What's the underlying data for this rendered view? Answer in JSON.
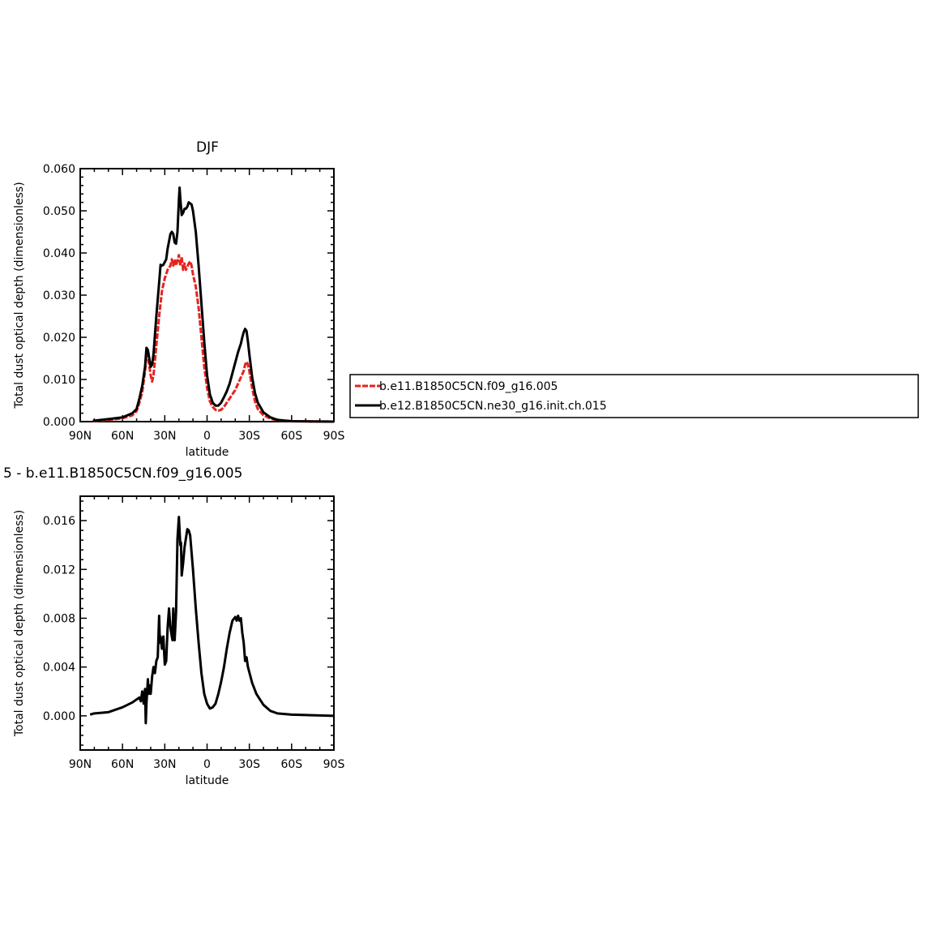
{
  "chart_data": [
    {
      "type": "line",
      "title": "DJF",
      "xlabel": "latitude",
      "ylabel": "Total dust optical depth (dimensionless)",
      "xlim": [
        90,
        -90
      ],
      "ylim": [
        0,
        0.06
      ],
      "x_ticks": [
        {
          "value": 90,
          "label": "90N"
        },
        {
          "value": 60,
          "label": "60N"
        },
        {
          "value": 30,
          "label": "30N"
        },
        {
          "value": 0,
          "label": "0"
        },
        {
          "value": -30,
          "label": "30S"
        },
        {
          "value": -60,
          "label": "60S"
        },
        {
          "value": -90,
          "label": "90S"
        }
      ],
      "y_ticks": [
        {
          "value": 0,
          "label": "0.000"
        },
        {
          "value": 0.01,
          "label": "0.010"
        },
        {
          "value": 0.02,
          "label": "0.020"
        },
        {
          "value": 0.03,
          "label": "0.030"
        },
        {
          "value": 0.04,
          "label": "0.040"
        },
        {
          "value": 0.05,
          "label": "0.050"
        },
        {
          "value": 0.06,
          "label": "0.060"
        }
      ],
      "legend_position": "right",
      "series": [
        {
          "name": "b.e11.B1850C5CN.f09_g16.005",
          "color": "#e8221f",
          "dashed": true,
          "points": [
            [
              81,
              0.0001
            ],
            [
              70,
              0.0004
            ],
            [
              60,
              0.0008
            ],
            [
              53,
              0.0015
            ],
            [
              50,
              0.0025
            ],
            [
              48,
              0.0045
            ],
            [
              46,
              0.007
            ],
            [
              44,
              0.012
            ],
            [
              43,
              0.016
            ],
            [
              42,
              0.0155
            ],
            [
              40,
              0.011
            ],
            [
              39,
              0.0095
            ],
            [
              38,
              0.011
            ],
            [
              36,
              0.018
            ],
            [
              34,
              0.025
            ],
            [
              32,
              0.031
            ],
            [
              30,
              0.034
            ],
            [
              28,
              0.036
            ],
            [
              26,
              0.037
            ],
            [
              25,
              0.0385
            ],
            [
              24,
              0.037
            ],
            [
              23,
              0.0385
            ],
            [
              22,
              0.037
            ],
            [
              20,
              0.0395
            ],
            [
              19,
              0.037
            ],
            [
              18,
              0.039
            ],
            [
              17,
              0.036
            ],
            [
              16,
              0.0375
            ],
            [
              15,
              0.036
            ],
            [
              13,
              0.0375
            ],
            [
              12,
              0.038
            ],
            [
              11,
              0.037
            ],
            [
              10,
              0.035
            ],
            [
              8,
              0.032
            ],
            [
              6,
              0.027
            ],
            [
              4,
              0.02
            ],
            [
              2,
              0.013
            ],
            [
              0,
              0.008
            ],
            [
              -2,
              0.0048
            ],
            [
              -4,
              0.0035
            ],
            [
              -6,
              0.0028
            ],
            [
              -8,
              0.0026
            ],
            [
              -10,
              0.0028
            ],
            [
              -12,
              0.0035
            ],
            [
              -14,
              0.0045
            ],
            [
              -16,
              0.0055
            ],
            [
              -18,
              0.0065
            ],
            [
              -20,
              0.0075
            ],
            [
              -22,
              0.009
            ],
            [
              -24,
              0.0105
            ],
            [
              -26,
              0.012
            ],
            [
              -27,
              0.0135
            ],
            [
              -28,
              0.0142
            ],
            [
              -29,
              0.0135
            ],
            [
              -30,
              0.012
            ],
            [
              -32,
              0.008
            ],
            [
              -34,
              0.0048
            ],
            [
              -36,
              0.003
            ],
            [
              -40,
              0.0015
            ],
            [
              -45,
              0.0007
            ],
            [
              -50,
              0.0003
            ],
            [
              -60,
              0.0001
            ],
            [
              -90,
              0.0
            ]
          ]
        },
        {
          "name": "b.e12.B1850C5CN.ne30_g16.init.ch.015",
          "color": "#000000",
          "dashed": false,
          "points": [
            [
              81,
              0.0002
            ],
            [
              70,
              0.0006
            ],
            [
              60,
              0.001
            ],
            [
              53,
              0.002
            ],
            [
              50,
              0.003
            ],
            [
              48,
              0.0055
            ],
            [
              46,
              0.0085
            ],
            [
              44,
              0.013
            ],
            [
              43,
              0.0175
            ],
            [
              42,
              0.017
            ],
            [
              40,
              0.013
            ],
            [
              39,
              0.0135
            ],
            [
              38,
              0.016
            ],
            [
              36,
              0.025
            ],
            [
              34,
              0.033
            ],
            [
              33,
              0.0372
            ],
            [
              32,
              0.037
            ],
            [
              31,
              0.0372
            ],
            [
              29,
              0.0385
            ],
            [
              28,
              0.041
            ],
            [
              26,
              0.0445
            ],
            [
              25,
              0.045
            ],
            [
              24,
              0.0445
            ],
            [
              23,
              0.0425
            ],
            [
              22,
              0.0422
            ],
            [
              21,
              0.045
            ],
            [
              20,
              0.0525
            ],
            [
              19.5,
              0.0555
            ],
            [
              19,
              0.053
            ],
            [
              18,
              0.049
            ],
            [
              17,
              0.0495
            ],
            [
              16,
              0.0505
            ],
            [
              15,
              0.0505
            ],
            [
              14,
              0.051
            ],
            [
              13,
              0.052
            ],
            [
              11,
              0.0515
            ],
            [
              10,
              0.05
            ],
            [
              8,
              0.045
            ],
            [
              6,
              0.037
            ],
            [
              4,
              0.028
            ],
            [
              2,
              0.019
            ],
            [
              0,
              0.011
            ],
            [
              -2,
              0.0065
            ],
            [
              -4,
              0.0045
            ],
            [
              -6,
              0.0038
            ],
            [
              -8,
              0.0038
            ],
            [
              -10,
              0.0045
            ],
            [
              -12,
              0.0058
            ],
            [
              -14,
              0.0072
            ],
            [
              -16,
              0.009
            ],
            [
              -18,
              0.0115
            ],
            [
              -20,
              0.014
            ],
            [
              -22,
              0.0165
            ],
            [
              -24,
              0.0185
            ],
            [
              -25,
              0.02
            ],
            [
              -26,
              0.0212
            ],
            [
              -27,
              0.022
            ],
            [
              -28,
              0.0215
            ],
            [
              -29,
              0.019
            ],
            [
              -30,
              0.016
            ],
            [
              -32,
              0.0105
            ],
            [
              -34,
              0.0068
            ],
            [
              -36,
              0.0045
            ],
            [
              -40,
              0.0022
            ],
            [
              -45,
              0.001
            ],
            [
              -50,
              0.0004
            ],
            [
              -60,
              0.0001
            ],
            [
              -90,
              0.0
            ]
          ]
        }
      ]
    },
    {
      "type": "line",
      "title": "5 - b.e11.B1850C5CN.f09_g16.005",
      "xlabel": "latitude",
      "ylabel": "Total dust optical depth (dimensionless)",
      "xlim": [
        90,
        -90
      ],
      "ylim": [
        -0.0028,
        0.018
      ],
      "x_ticks": [
        {
          "value": 90,
          "label": "90N"
        },
        {
          "value": 60,
          "label": "60N"
        },
        {
          "value": 30,
          "label": "30N"
        },
        {
          "value": 0,
          "label": "0"
        },
        {
          "value": -30,
          "label": "30S"
        },
        {
          "value": -60,
          "label": "60S"
        },
        {
          "value": -90,
          "label": "90S"
        }
      ],
      "y_ticks": [
        {
          "value": 0,
          "label": "0.000"
        },
        {
          "value": 0.004,
          "label": "0.004"
        },
        {
          "value": 0.008,
          "label": "0.008"
        },
        {
          "value": 0.012,
          "label": "0.012"
        },
        {
          "value": 0.016,
          "label": "0.016"
        }
      ],
      "series": [
        {
          "name": "",
          "color": "#000000",
          "dashed": false,
          "points": [
            [
              83,
              0.0001
            ],
            [
              80,
              0.0002
            ],
            [
              70,
              0.0003
            ],
            [
              60,
              0.0007
            ],
            [
              53,
              0.0011
            ],
            [
              48,
              0.0015
            ],
            [
              47,
              0.0012
            ],
            [
              46,
              0.002
            ],
            [
              45,
              0.001
            ],
            [
              44,
              0.0022
            ],
            [
              43.5,
              -0.0006
            ],
            [
              43,
              0.001
            ],
            [
              42,
              0.003
            ],
            [
              41.5,
              0.0018
            ],
            [
              41,
              0.0025
            ],
            [
              40,
              0.0018
            ],
            [
              39,
              0.0032
            ],
            [
              38,
              0.004
            ],
            [
              37,
              0.0035
            ],
            [
              36,
              0.0045
            ],
            [
              35,
              0.0048
            ],
            [
              34,
              0.0082
            ],
            [
              33.5,
              0.006
            ],
            [
              33,
              0.0065
            ],
            [
              32,
              0.0055
            ],
            [
              31,
              0.0065
            ],
            [
              30,
              0.0042
            ],
            [
              29,
              0.0045
            ],
            [
              28,
              0.0072
            ],
            [
              27,
              0.0088
            ],
            [
              26,
              0.0072
            ],
            [
              25,
              0.0065
            ],
            [
              24.5,
              0.0062
            ],
            [
              24,
              0.0088
            ],
            [
              23,
              0.0062
            ],
            [
              22,
              0.0085
            ],
            [
              21,
              0.0145
            ],
            [
              20,
              0.0163
            ],
            [
              19,
              0.014
            ],
            [
              18.5,
              0.0142
            ],
            [
              18,
              0.0115
            ],
            [
              17,
              0.0125
            ],
            [
              16,
              0.0138
            ],
            [
              14,
              0.0153
            ],
            [
              13,
              0.0152
            ],
            [
              12,
              0.0148
            ],
            [
              10,
              0.012
            ],
            [
              8,
              0.0088
            ],
            [
              6,
              0.006
            ],
            [
              4,
              0.0035
            ],
            [
              2,
              0.0018
            ],
            [
              0,
              0.001
            ],
            [
              -2,
              0.0006
            ],
            [
              -4,
              0.0007
            ],
            [
              -6,
              0.001
            ],
            [
              -8,
              0.0018
            ],
            [
              -10,
              0.0028
            ],
            [
              -12,
              0.004
            ],
            [
              -14,
              0.0055
            ],
            [
              -16,
              0.0068
            ],
            [
              -18,
              0.0078
            ],
            [
              -20,
              0.0081
            ],
            [
              -21,
              0.0078
            ],
            [
              -22,
              0.0082
            ],
            [
              -23,
              0.0078
            ],
            [
              -24,
              0.008
            ],
            [
              -25,
              0.0068
            ],
            [
              -26,
              0.006
            ],
            [
              -27,
              0.0045
            ],
            [
              -28,
              0.0048
            ],
            [
              -29,
              0.004
            ],
            [
              -32,
              0.0027
            ],
            [
              -35,
              0.0018
            ],
            [
              -40,
              0.0009
            ],
            [
              -45,
              0.0004
            ],
            [
              -50,
              0.0002
            ],
            [
              -60,
              0.0001
            ],
            [
              -90,
              0.0
            ]
          ]
        }
      ]
    }
  ]
}
